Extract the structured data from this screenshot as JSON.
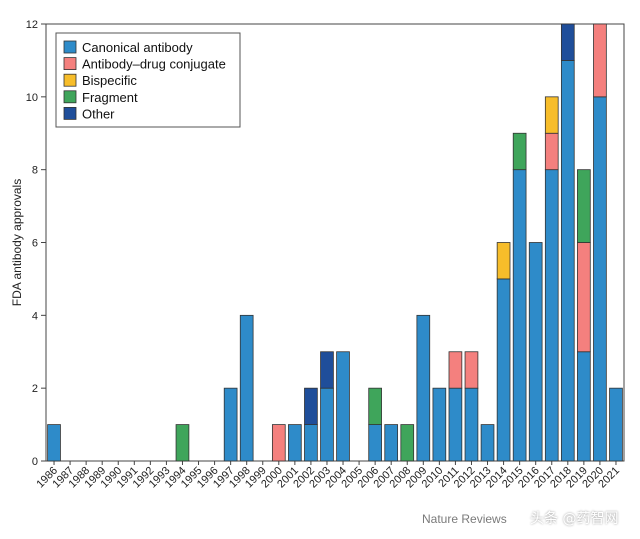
{
  "chart_data": {
    "type": "bar",
    "stacked": true,
    "ylabel": "FDA antibody approvals",
    "xlabel": "",
    "ylim": [
      0,
      12
    ],
    "yticks": [
      0,
      2,
      4,
      6,
      8,
      10,
      12
    ],
    "grid": false,
    "legend_position": "top-left",
    "categories": [
      "1986",
      "1987",
      "1988",
      "1989",
      "1990",
      "1991",
      "1992",
      "1993",
      "1994",
      "1995",
      "1996",
      "1997",
      "1998",
      "1999",
      "2000",
      "2001",
      "2002",
      "2003",
      "2004",
      "2005",
      "2006",
      "2007",
      "2008",
      "2009",
      "2010",
      "2011",
      "2012",
      "2013",
      "2014",
      "2015",
      "2016",
      "2017",
      "2018",
      "2019",
      "2020",
      "2021"
    ],
    "series": [
      {
        "name": "Canonical antibody",
        "color": "#2E8BC9",
        "values": [
          1,
          0,
          0,
          0,
          0,
          0,
          0,
          0,
          0,
          0,
          0,
          2,
          4,
          0,
          0,
          1,
          1,
          2,
          3,
          0,
          1,
          1,
          0,
          4,
          2,
          2,
          2,
          1,
          5,
          8,
          6,
          8,
          11,
          3,
          10,
          2
        ]
      },
      {
        "name": "Antibody–drug conjugate",
        "color": "#F4807E",
        "values": [
          0,
          0,
          0,
          0,
          0,
          0,
          0,
          0,
          0,
          0,
          0,
          0,
          0,
          0,
          1,
          0,
          0,
          0,
          0,
          0,
          0,
          0,
          0,
          0,
          0,
          1,
          1,
          0,
          0,
          0,
          0,
          1,
          0,
          3,
          2,
          0
        ]
      },
      {
        "name": "Bispecific",
        "color": "#F7BD2A",
        "values": [
          0,
          0,
          0,
          0,
          0,
          0,
          0,
          0,
          0,
          0,
          0,
          0,
          0,
          0,
          0,
          0,
          0,
          0,
          0,
          0,
          0,
          0,
          0,
          0,
          0,
          0,
          0,
          0,
          1,
          0,
          0,
          1,
          0,
          0,
          0,
          0
        ]
      },
      {
        "name": "Fragment",
        "color": "#3FA55B",
        "values": [
          0,
          0,
          0,
          0,
          0,
          0,
          0,
          0,
          1,
          0,
          0,
          0,
          0,
          0,
          0,
          0,
          0,
          0,
          0,
          0,
          1,
          0,
          1,
          0,
          0,
          0,
          0,
          0,
          0,
          1,
          0,
          0,
          0,
          2,
          0,
          0
        ]
      },
      {
        "name": "Other",
        "color": "#1F4E9A",
        "values": [
          0,
          0,
          0,
          0,
          0,
          0,
          0,
          0,
          0,
          0,
          0,
          0,
          0,
          0,
          0,
          0,
          1,
          1,
          0,
          0,
          0,
          0,
          0,
          0,
          0,
          0,
          0,
          0,
          0,
          0,
          0,
          0,
          1,
          0,
          0,
          0
        ]
      }
    ]
  },
  "credit": "Nature Reviews",
  "watermark": "头条 @药智网"
}
